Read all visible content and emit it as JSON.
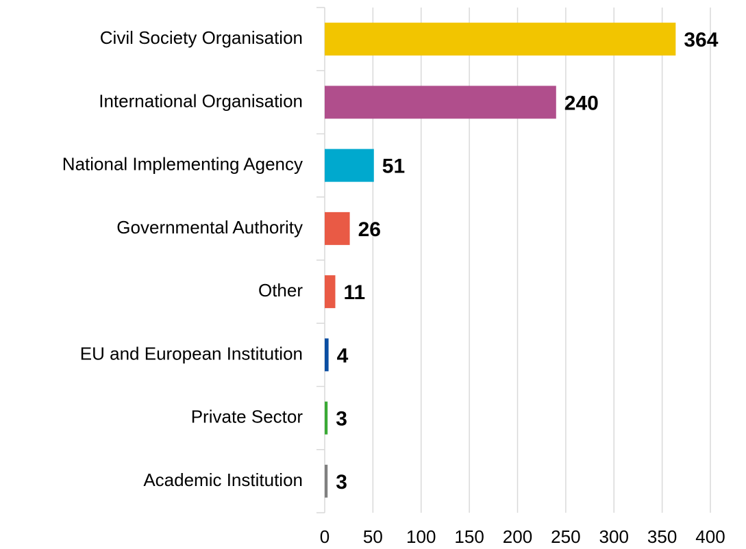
{
  "chart_data": {
    "type": "bar",
    "orientation": "horizontal",
    "categories": [
      "Civil Society Organisation",
      "International Organisation",
      "National Implementing Agency",
      "Governmental Authority",
      "Other",
      "EU and European Institution",
      "Private Sector",
      "Academic Institution"
    ],
    "values": [
      364,
      240,
      51,
      26,
      11,
      4,
      3,
      3
    ],
    "colors": [
      "#f2c500",
      "#b04e8c",
      "#00a9ce",
      "#e95a45",
      "#e95a45",
      "#0b4ea2",
      "#3aaa35",
      "#808080"
    ],
    "xlim": [
      0,
      400
    ],
    "xticks": [
      0,
      50,
      100,
      150,
      200,
      250,
      300,
      350,
      400
    ],
    "grid": true
  }
}
